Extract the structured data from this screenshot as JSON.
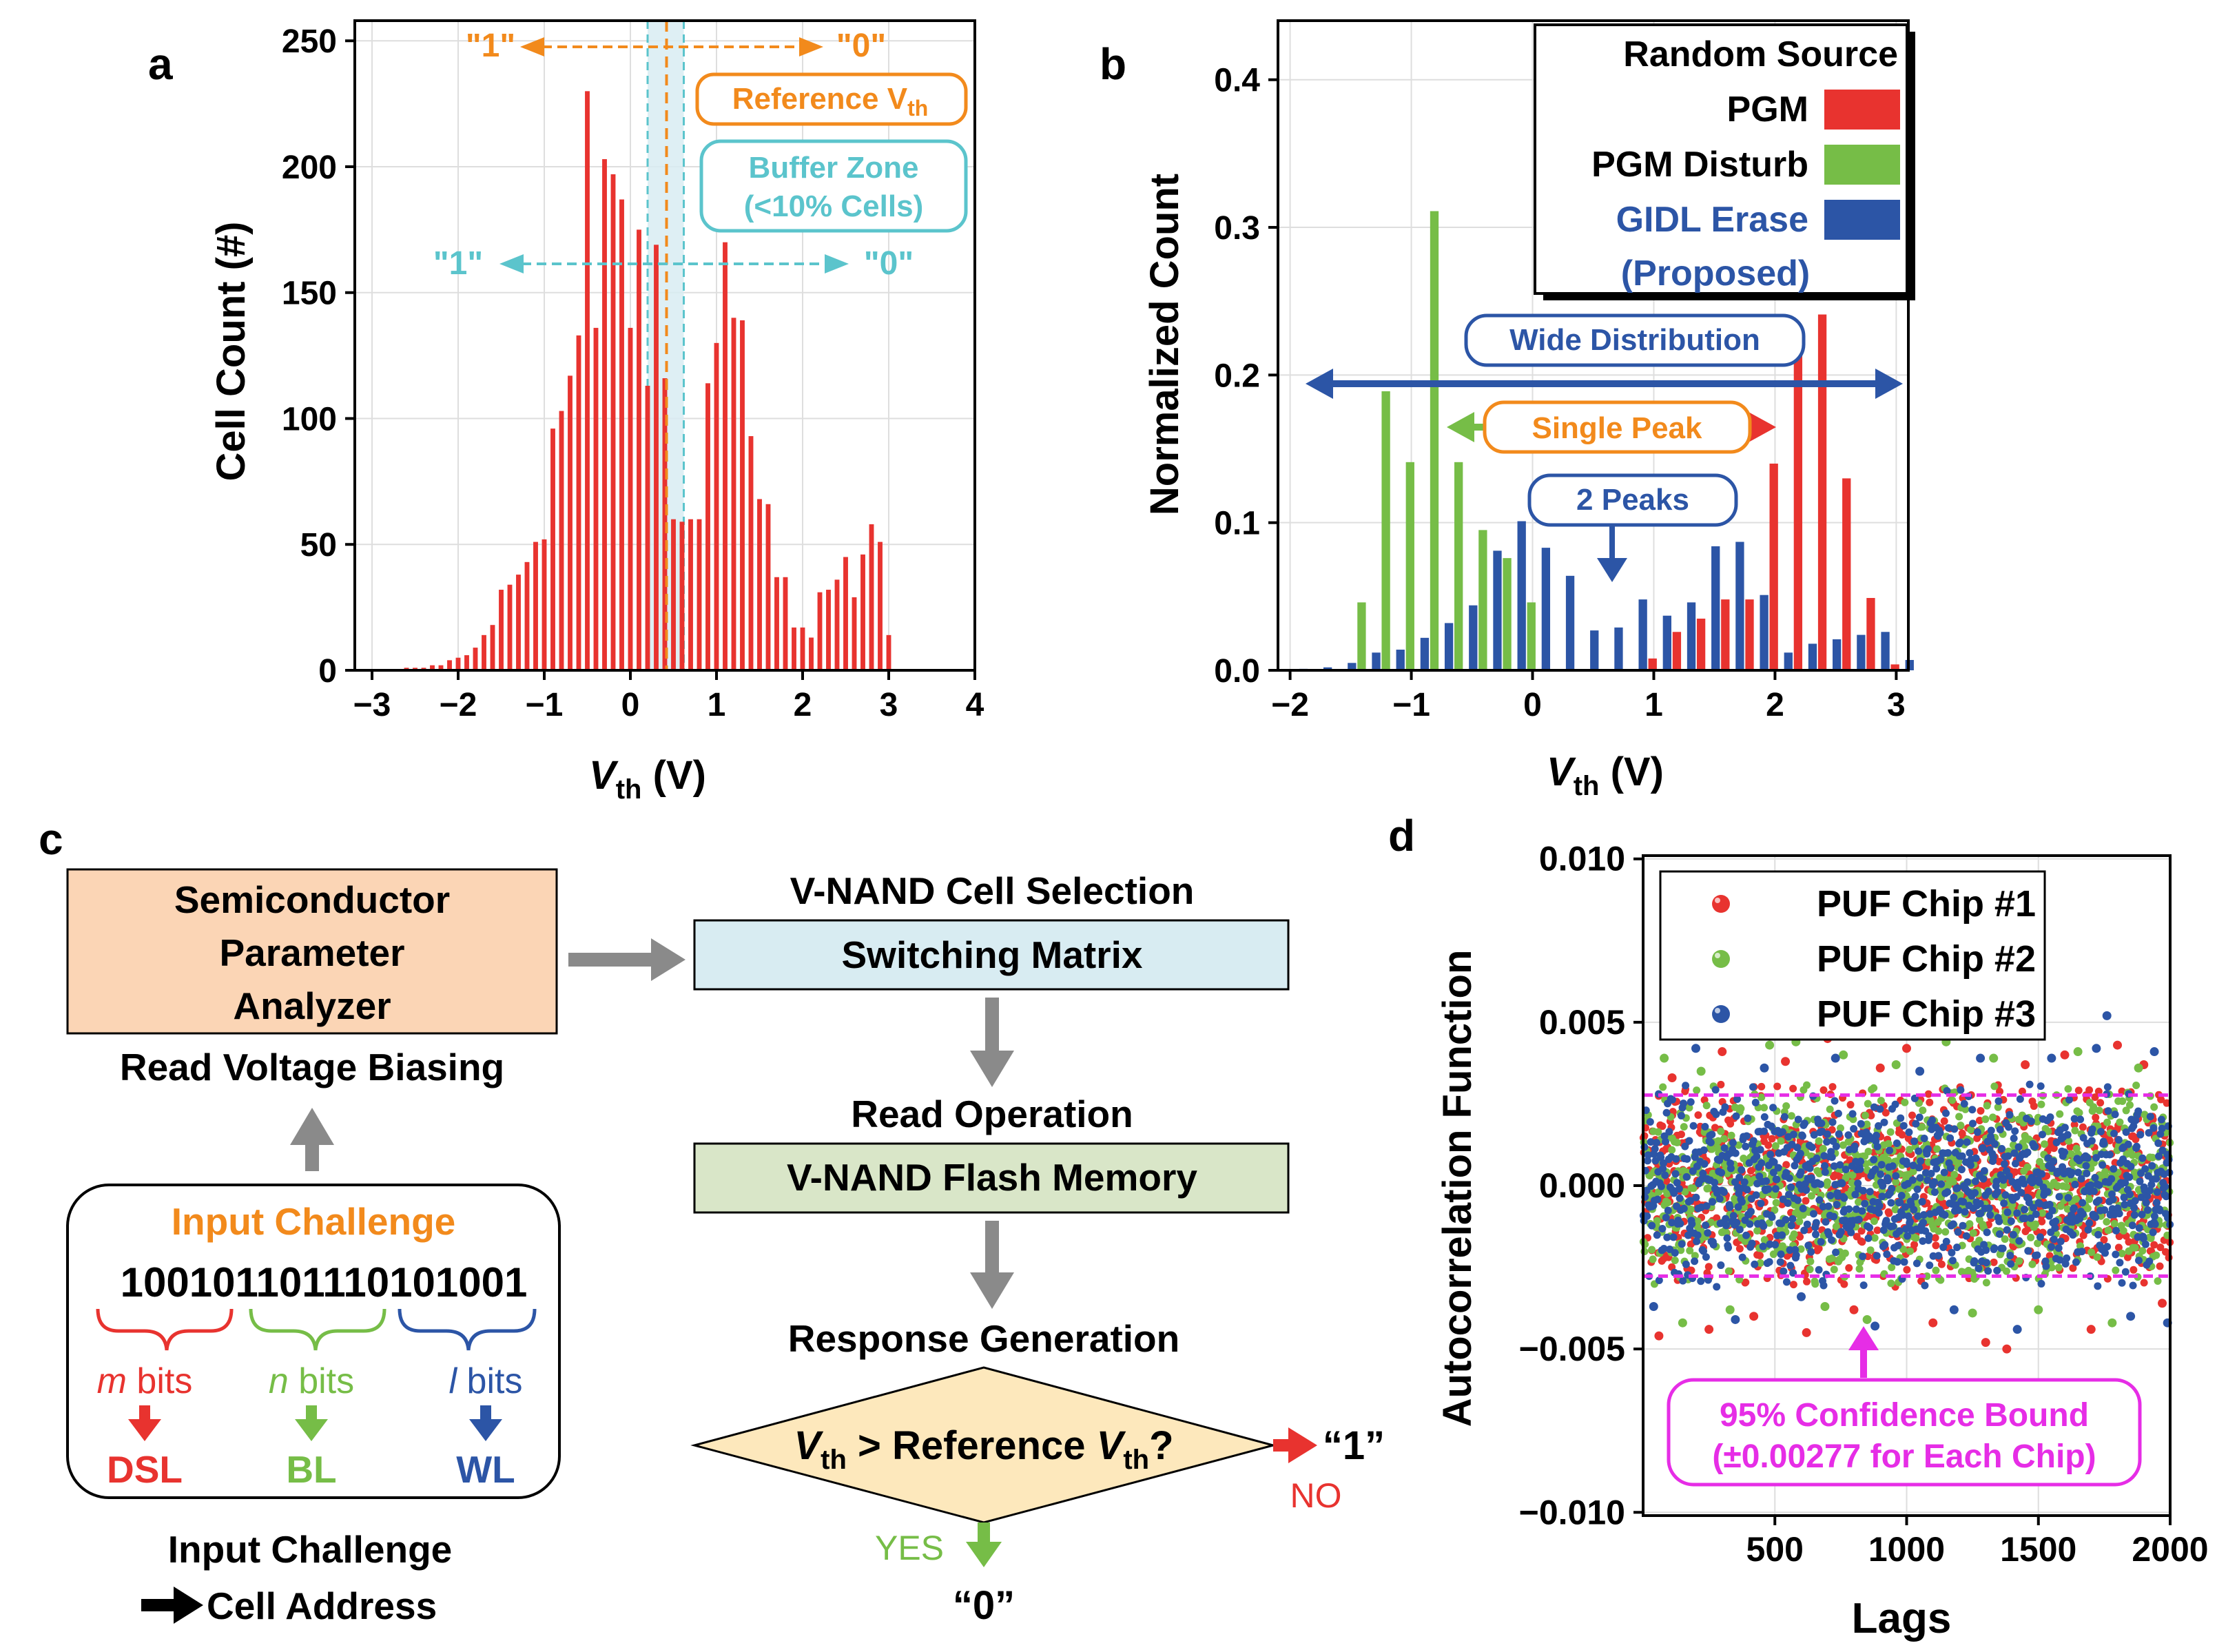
{
  "panel_labels": {
    "a": "a",
    "b": "b",
    "c": "c",
    "d": "d"
  },
  "colors": {
    "red": "#e8332f",
    "green": "#76bd47",
    "blue": "#2c55a6",
    "orange": "#f28a1c",
    "cyan": "#5bc4cc",
    "magenta": "#e62de6",
    "gray": "#8a8a8a",
    "peach": "#fbd5b5",
    "lightblue": "#d8ecf2",
    "lightgreen": "#d9e6c8",
    "diamond": "#fde8bc"
  },
  "chart_data": [
    {
      "id": "a",
      "type": "bar",
      "xlabel_main": "V",
      "xlabel_sub": "th",
      "xlabel_unit": " (V)",
      "ylabel": "Cell Count (#)",
      "xlim": [
        -3.2,
        4.0
      ],
      "ylim": [
        0,
        258
      ],
      "xticks": [
        -3,
        -2,
        -1,
        0,
        1,
        2,
        3,
        4
      ],
      "xtick_labels": [
        "−3",
        "−2",
        "−1",
        "0",
        "1",
        "2",
        "3",
        "4"
      ],
      "yticks": [
        0,
        50,
        100,
        150,
        200,
        250
      ],
      "ytick_labels": [
        "0",
        "50",
        "100",
        "150",
        "200",
        "250"
      ],
      "bar_width": 0.055,
      "series": [
        {
          "name": "PGM",
          "color": "#e8332f",
          "x": [
            -2.6,
            -2.5,
            -2.4,
            -2.3,
            -2.2,
            -2.1,
            -2.0,
            -1.9,
            -1.8,
            -1.7,
            -1.6,
            -1.5,
            -1.4,
            -1.3,
            -1.2,
            -1.1,
            -1.0,
            -0.9,
            -0.8,
            -0.7,
            -0.6,
            -0.5,
            -0.4,
            -0.3,
            -0.2,
            -0.1,
            0.0,
            0.1,
            0.2,
            0.3,
            0.4,
            0.5,
            0.6,
            0.7,
            0.8,
            0.9,
            1.0,
            1.1,
            1.2,
            1.3,
            1.4,
            1.5,
            1.6,
            1.7,
            1.8,
            1.9,
            2.0,
            2.1,
            2.2,
            2.3,
            2.4,
            2.5,
            2.6,
            2.7,
            2.8,
            2.9,
            3.0
          ],
          "values": [
            1,
            1,
            1,
            2,
            2,
            4,
            5,
            6,
            9,
            14,
            18,
            32,
            34,
            38,
            43,
            51,
            52,
            96,
            103,
            117,
            133,
            230,
            136,
            203,
            197,
            187,
            136,
            175,
            113,
            169,
            116,
            60,
            59,
            60,
            60,
            114,
            130,
            170,
            140,
            139,
            93,
            68,
            66,
            37,
            37,
            17,
            17,
            13,
            31,
            32,
            36,
            45,
            29,
            46,
            58,
            51,
            14
          ]
        }
      ],
      "reference_line_x": 0.42,
      "buffer_zone": [
        0.2,
        0.62
      ],
      "annotations": {
        "top_left": "\"1\"",
        "top_right": "\"0\"",
        "mid_left": "\"1\"",
        "mid_right": "\"0\"",
        "reference_box_text": "Reference V",
        "reference_box_sub": "th",
        "buffer_box_line1": "Buffer Zone",
        "buffer_box_line2": "(<10% Cells)"
      }
    },
    {
      "id": "b",
      "type": "bar",
      "xlabel_main": "V",
      "xlabel_sub": "th",
      "xlabel_unit": " (V)",
      "ylabel": "Normalized Count",
      "xlim": [
        -2.1,
        3.1
      ],
      "ylim": [
        0,
        0.44
      ],
      "xticks": [
        -2,
        -1,
        0,
        1,
        2,
        3
      ],
      "xtick_labels": [
        "−2",
        "−1",
        "0",
        "1",
        "2",
        "3"
      ],
      "yticks": [
        0.0,
        0.1,
        0.2,
        0.3,
        0.4
      ],
      "ytick_labels": [
        "0.0",
        "0.1",
        "0.2",
        "0.3",
        "0.4"
      ],
      "bar_width": 0.07,
      "legend_title": "Random Source",
      "series": [
        {
          "name": "PGM",
          "color": "#e8332f",
          "x": [
            0.99,
            1.19,
            1.39,
            1.59,
            1.79,
            1.99,
            2.19,
            2.39,
            2.59,
            2.79,
            2.99
          ],
          "values": [
            0.008,
            0.026,
            0.035,
            0.048,
            0.048,
            0.14,
            0.229,
            0.241,
            0.13,
            0.049,
            0.004
          ]
        },
        {
          "name": "PGM Disturb",
          "color": "#76bd47",
          "x": [
            -1.41,
            -1.21,
            -1.01,
            -0.81,
            -0.61,
            -0.41,
            -0.21,
            -0.01
          ],
          "values": [
            0.046,
            0.189,
            0.141,
            0.311,
            0.141,
            0.095,
            0.076,
            0.046
          ]
        },
        {
          "name": "GIDL Erase",
          "name_line2": "(Proposed)",
          "color": "#2c55a6",
          "x": [
            -1.89,
            -1.69,
            -1.49,
            -1.29,
            -1.09,
            -0.89,
            -0.69,
            -0.49,
            -0.29,
            -0.09,
            0.11,
            0.31,
            0.51,
            0.71,
            0.91,
            1.11,
            1.31,
            1.51,
            1.71,
            1.91,
            2.11,
            2.31,
            2.51,
            2.71,
            2.91,
            3.11
          ],
          "values": [
            0.001,
            0.002,
            0.005,
            0.012,
            0.014,
            0.022,
            0.032,
            0.044,
            0.081,
            0.101,
            0.083,
            0.064,
            0.027,
            0.029,
            0.048,
            0.037,
            0.046,
            0.084,
            0.087,
            0.051,
            0.012,
            0.018,
            0.021,
            0.024,
            0.026,
            0.007
          ]
        }
      ],
      "annotations": {
        "wide": "Wide Distribution",
        "single": "Single Peak",
        "two_peaks": "2 Peaks"
      }
    },
    {
      "id": "d",
      "type": "scatter",
      "xlabel": "Lags",
      "ylabel": "Autocorrelation Function",
      "xlim": [
        0,
        2000
      ],
      "ylim": [
        -0.0101,
        0.0101
      ],
      "xticks": [
        500,
        1000,
        1500,
        2000
      ],
      "xtick_labels": [
        "500",
        "1000",
        "1500",
        "2000"
      ],
      "yticks": [
        -0.01,
        -0.005,
        0.0,
        0.005,
        0.01
      ],
      "ytick_labels": [
        "−0.010",
        "−0.005",
        "0.000",
        "0.005",
        "0.010"
      ],
      "confidence_bound": 0.00277,
      "series": [
        {
          "name": "PUF Chip #1",
          "color": "#e8332f",
          "n_points": 2000,
          "spread": 0.00151,
          "outliers": [
            [
              60,
              -0.0046
            ],
            [
              110,
              0.0033
            ],
            [
              180,
              0.0046
            ],
            [
              250,
              -0.0044
            ],
            [
              300,
              0.0041
            ],
            [
              420,
              -0.004
            ],
            [
              540,
              0.0038
            ],
            [
              620,
              -0.0045
            ],
            [
              700,
              0.0045
            ],
            [
              800,
              -0.0038
            ],
            [
              900,
              0.0036
            ],
            [
              1000,
              0.0042
            ],
            [
              1100,
              -0.0042
            ],
            [
              1200,
              0.0046
            ],
            [
              1300,
              -0.0048
            ],
            [
              1380,
              -0.005
            ],
            [
              1450,
              0.0037
            ],
            [
              1600,
              0.004
            ],
            [
              1700,
              -0.0044
            ],
            [
              1800,
              0.0043
            ],
            [
              1900,
              0.0037
            ],
            [
              1970,
              -0.0036
            ]
          ]
        },
        {
          "name": "PUF Chip #2",
          "color": "#76bd47",
          "n_points": 2000,
          "spread": 0.00151,
          "outliers": [
            [
              80,
              0.0039
            ],
            [
              150,
              -0.0042
            ],
            [
              220,
              0.0035
            ],
            [
              330,
              -0.0038
            ],
            [
              480,
              0.0043
            ],
            [
              580,
              0.0044
            ],
            [
              690,
              -0.0037
            ],
            [
              760,
              0.004
            ],
            [
              850,
              -0.0041
            ],
            [
              960,
              0.0037
            ],
            [
              1150,
              0.0044
            ],
            [
              1250,
              -0.0039
            ],
            [
              1330,
              0.0039
            ],
            [
              1500,
              -0.0038
            ],
            [
              1650,
              0.0041
            ],
            [
              1780,
              -0.0042
            ],
            [
              1880,
              0.0036
            ]
          ]
        },
        {
          "name": "PUF Chip #3",
          "color": "#2c55a6",
          "n_points": 2000,
          "spread": 0.00151,
          "outliers": [
            [
              40,
              -0.0037
            ],
            [
              200,
              0.0042
            ],
            [
              350,
              -0.0041
            ],
            [
              460,
              0.0036
            ],
            [
              600,
              -0.0034
            ],
            [
              730,
              0.0039
            ],
            [
              880,
              -0.0043
            ],
            [
              1050,
              0.0035
            ],
            [
              1180,
              -0.0038
            ],
            [
              1280,
              0.0039
            ],
            [
              1420,
              -0.0044
            ],
            [
              1550,
              0.0039
            ],
            [
              1720,
              0.0042
            ],
            [
              1760,
              0.0052
            ],
            [
              1850,
              -0.004
            ],
            [
              1940,
              0.0041
            ],
            [
              1990,
              -0.0042
            ]
          ]
        }
      ],
      "annotation_line1": "95% Confidence Bound",
      "annotation_line2": "(±0.00277 for Each Chip)"
    }
  ],
  "panel_c": {
    "analyzer_line1": "Semiconductor",
    "analyzer_line2": "Parameter",
    "analyzer_line3": "Analyzer",
    "read_voltage": "Read Voltage Biasing",
    "cell_selection": "V-NAND Cell Selection",
    "switching_matrix": "Switching Matrix",
    "read_operation": "Read Operation",
    "flash_memory": "V-NAND Flash Memory",
    "response_generation": "Response Generation",
    "decision_v": "V",
    "decision_th": "th",
    "decision_mid": " > Reference ",
    "decision_v2": "V",
    "decision_th2": "th",
    "decision_q": "?",
    "no_label": "NO",
    "yes_label": "YES",
    "out_one": "“1”",
    "out_zero": "“0”",
    "input_challenge_title": "Input Challenge",
    "bits_m": "100101",
    "bits_n": "101110",
    "bits_l": "101001",
    "m_var": "m",
    "n_var": "n",
    "l_var": "l",
    "bits_word": " bits",
    "dsl": "DSL",
    "bl": "BL",
    "wl": "WL",
    "footer_line1": "Input Challenge",
    "footer_line2": "Cell Address"
  }
}
